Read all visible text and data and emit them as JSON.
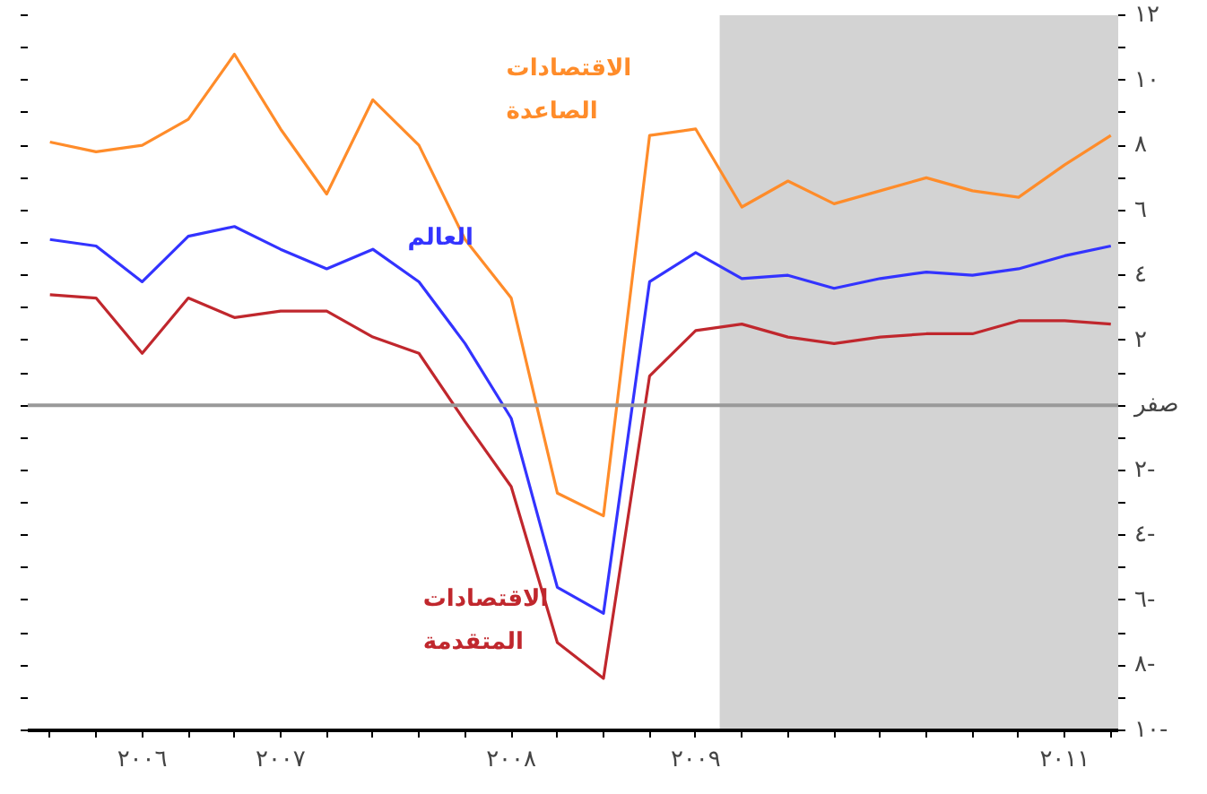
{
  "chart_data": {
    "type": "line",
    "x": [
      2006.0,
      2006.25,
      2006.5,
      2006.75,
      2007.0,
      2007.25,
      2007.5,
      2007.75,
      2008.0,
      2008.25,
      2008.5,
      2008.75,
      2009.0,
      2009.25,
      2009.5,
      2009.75,
      2010.0,
      2010.25,
      2010.5,
      2010.75,
      2011.0,
      2011.25,
      2011.5,
      2011.75
    ],
    "series": [
      {
        "name": "الاقتصادات\nالصاعدة",
        "color": "#ff8c2a",
        "values": [
          8.1,
          7.8,
          8.0,
          8.8,
          10.8,
          8.5,
          6.5,
          9.4,
          8.0,
          5.1,
          3.3,
          -2.7,
          -3.4,
          8.3,
          8.5,
          6.1,
          6.9,
          6.2,
          6.6,
          7.0,
          6.6,
          6.4,
          7.4,
          8.3
        ]
      },
      {
        "name": "العالم",
        "color": "#3333ff",
        "values": [
          5.1,
          4.9,
          3.8,
          5.2,
          5.5,
          4.8,
          4.2,
          4.8,
          3.8,
          1.9,
          -0.4,
          -5.6,
          -6.4,
          3.8,
          4.7,
          3.9,
          4.0,
          3.6,
          3.9,
          4.1,
          4.0,
          4.2,
          4.6,
          4.9
        ]
      },
      {
        "name": "الاقتصادات\nالمتقدمة",
        "color": "#c0272d",
        "values": [
          3.4,
          3.3,
          1.6,
          3.3,
          2.7,
          2.9,
          2.9,
          2.1,
          1.6,
          -0.5,
          -2.5,
          -7.3,
          -8.4,
          0.9,
          2.3,
          2.5,
          2.1,
          1.9,
          2.1,
          2.2,
          2.2,
          2.6,
          2.6,
          2.5
        ]
      }
    ],
    "xlim": [
      2005.88,
      2011.79
    ],
    "xticks": [
      {
        "value": 2006.0,
        "label": null
      },
      {
        "value": 2006.25,
        "label": null
      },
      {
        "value": 2006.5,
        "label": "٢٠٠٦"
      },
      {
        "value": 2006.75,
        "label": null
      },
      {
        "value": 2007.0,
        "label": null
      },
      {
        "value": 2007.25,
        "label": "٢٠٠٧"
      },
      {
        "value": 2007.5,
        "label": null
      },
      {
        "value": 2007.75,
        "label": null
      },
      {
        "value": 2008.0,
        "label": null
      },
      {
        "value": 2008.25,
        "label": null
      },
      {
        "value": 2008.5,
        "label": "٢٠٠٨"
      },
      {
        "value": 2008.75,
        "label": null
      },
      {
        "value": 2009.0,
        "label": null
      },
      {
        "value": 2009.25,
        "label": null
      },
      {
        "value": 2009.5,
        "label": "٢٠٠٩"
      },
      {
        "value": 2009.75,
        "label": null
      },
      {
        "value": 2010.0,
        "label": null
      },
      {
        "value": 2010.25,
        "label": null
      },
      {
        "value": 2010.5,
        "label": null
      },
      {
        "value": 2010.75,
        "label": null
      },
      {
        "value": 2011.0,
        "label": null
      },
      {
        "value": 2011.25,
        "label": null
      },
      {
        "value": 2011.5,
        "label": "٢٠١١"
      },
      {
        "value": 2011.75,
        "label": null
      }
    ],
    "ylim": [
      -10,
      12
    ],
    "yticks": [
      {
        "value": 12,
        "label": "١٢"
      },
      {
        "value": 11,
        "label": null
      },
      {
        "value": 10,
        "label": "١٠"
      },
      {
        "value": 9,
        "label": null
      },
      {
        "value": 8,
        "label": "٨"
      },
      {
        "value": 7,
        "label": null
      },
      {
        "value": 6,
        "label": "٦"
      },
      {
        "value": 5,
        "label": null
      },
      {
        "value": 4,
        "label": "٤"
      },
      {
        "value": 3,
        "label": null
      },
      {
        "value": 2,
        "label": "٢"
      },
      {
        "value": 1,
        "label": null
      },
      {
        "value": 0,
        "label": "صفر"
      },
      {
        "value": -1,
        "label": null
      },
      {
        "value": -2,
        "label": "٢-"
      },
      {
        "value": -3,
        "label": null
      },
      {
        "value": -4,
        "label": "٤-"
      },
      {
        "value": -5,
        "label": null
      },
      {
        "value": -6,
        "label": "٦-"
      },
      {
        "value": -7,
        "label": null
      },
      {
        "value": -8,
        "label": "٨-"
      },
      {
        "value": -9,
        "label": null
      },
      {
        "value": -10,
        "label": "١٠-"
      }
    ],
    "ref_lines": [
      {
        "axis": "y",
        "value": 0,
        "color": "#999999"
      }
    ],
    "bands": [
      {
        "axis": "x",
        "from": 2009.63,
        "to": 2011.79,
        "color": "#d3d3d3"
      }
    ]
  }
}
